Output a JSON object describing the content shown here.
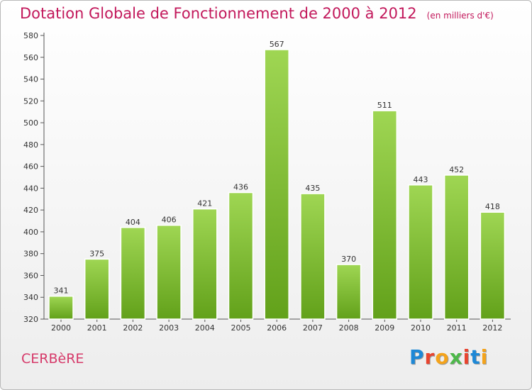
{
  "title": "Dotation Globale de Fonctionnement de 2000 à 2012",
  "subtitle": "(en milliers d'€)",
  "commune": "CERBèRE",
  "logo": {
    "letters": [
      "P",
      "r",
      "o",
      "x",
      "i",
      "t",
      "i"
    ],
    "colors": [
      "#1e88d6",
      "#e8442f",
      "#f4a31b",
      "#4db84a",
      "#e8442f",
      "#1e88d6",
      "#f4a31b"
    ]
  },
  "chart_data": {
    "type": "bar",
    "categories": [
      "2000",
      "2001",
      "2002",
      "2003",
      "2004",
      "2005",
      "2006",
      "2007",
      "2008",
      "2009",
      "2010",
      "2011",
      "2012"
    ],
    "values": [
      341,
      375,
      404,
      406,
      421,
      436,
      567,
      435,
      370,
      511,
      443,
      452,
      418
    ],
    "ylim": [
      320,
      580
    ],
    "yticks": [
      320,
      340,
      360,
      380,
      400,
      420,
      440,
      460,
      480,
      500,
      520,
      540,
      560,
      580
    ],
    "grid": false,
    "bar_color_top": "#9fd653",
    "bar_color_bottom": "#62a11a"
  }
}
